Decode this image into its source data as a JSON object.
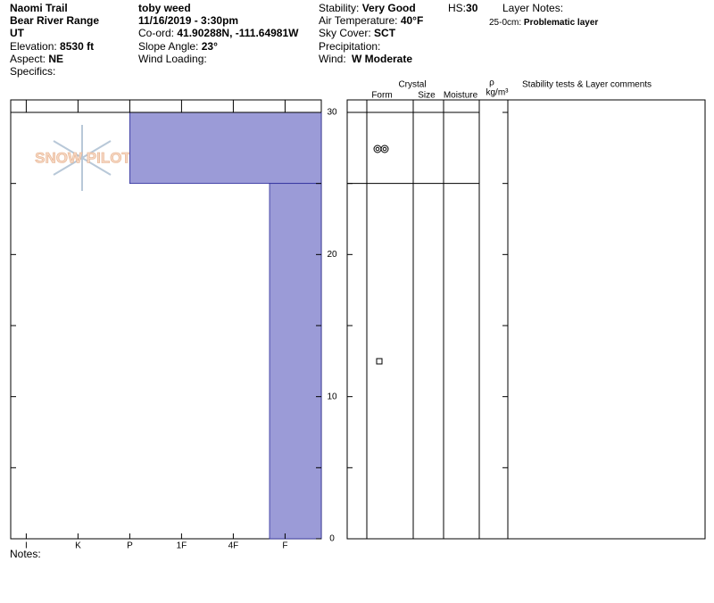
{
  "header": {
    "location": "Naomi Trail",
    "range": "Bear River Range",
    "state": "UT",
    "elevation": {
      "label": "Elevation:",
      "value": "8530 ft"
    },
    "aspect": {
      "label": "Aspect:",
      "value": "NE"
    },
    "specifics": "Specifics:",
    "observer": "toby weed",
    "datetime": "11/16/2019 - 3:30pm",
    "coord": {
      "label": "Co-ord:",
      "value": "41.90288N, -111.64981W"
    },
    "slope": {
      "label": "Slope Angle:",
      "value": "23°"
    },
    "wind_loading": "Wind Loading:",
    "stability": {
      "label": "Stability:",
      "value": "Very Good"
    },
    "air_temp": {
      "label": "Air Temperature:",
      "value": "40°F"
    },
    "sky": {
      "label": "Sky Cover:",
      "value": "SCT"
    },
    "precipitation": "Precipitation:",
    "wind": {
      "label": "Wind:",
      "value": "W Moderate"
    },
    "hs": {
      "label": "HS:",
      "value": "30"
    },
    "layer_notes": {
      "label": "Layer Notes:",
      "range": "25-0cm:",
      "text": "Problematic layer"
    }
  },
  "logo": "SNOW PILOT",
  "columns": {
    "crystal": "Crystal",
    "form": "Form",
    "size": "Size",
    "moisture": "Moisture",
    "rho": "ρ",
    "density_unit": "kg/m³",
    "comments": "Stability tests & Layer comments"
  },
  "notes": "Notes:",
  "chart_data": {
    "type": "profile",
    "color": "#9b9bd7",
    "xlim": [
      -0.3,
      5.7
    ],
    "xticks": [
      {
        "value": 0,
        "label": "I"
      },
      {
        "value": 1,
        "label": "K"
      },
      {
        "value": 2,
        "label": "P"
      },
      {
        "value": 3,
        "label": "1F"
      },
      {
        "value": 4,
        "label": "4F"
      },
      {
        "value": 5,
        "label": "F"
      }
    ],
    "ylim": [
      0,
      30
    ],
    "yticks": [
      0,
      10,
      20,
      30
    ],
    "minor_yticks": [
      5,
      15,
      25
    ],
    "layers": [
      {
        "top": 30,
        "bottom": 25,
        "hardness": 2
      },
      {
        "top": 25,
        "bottom": 0,
        "hardness": 4.7
      }
    ]
  }
}
